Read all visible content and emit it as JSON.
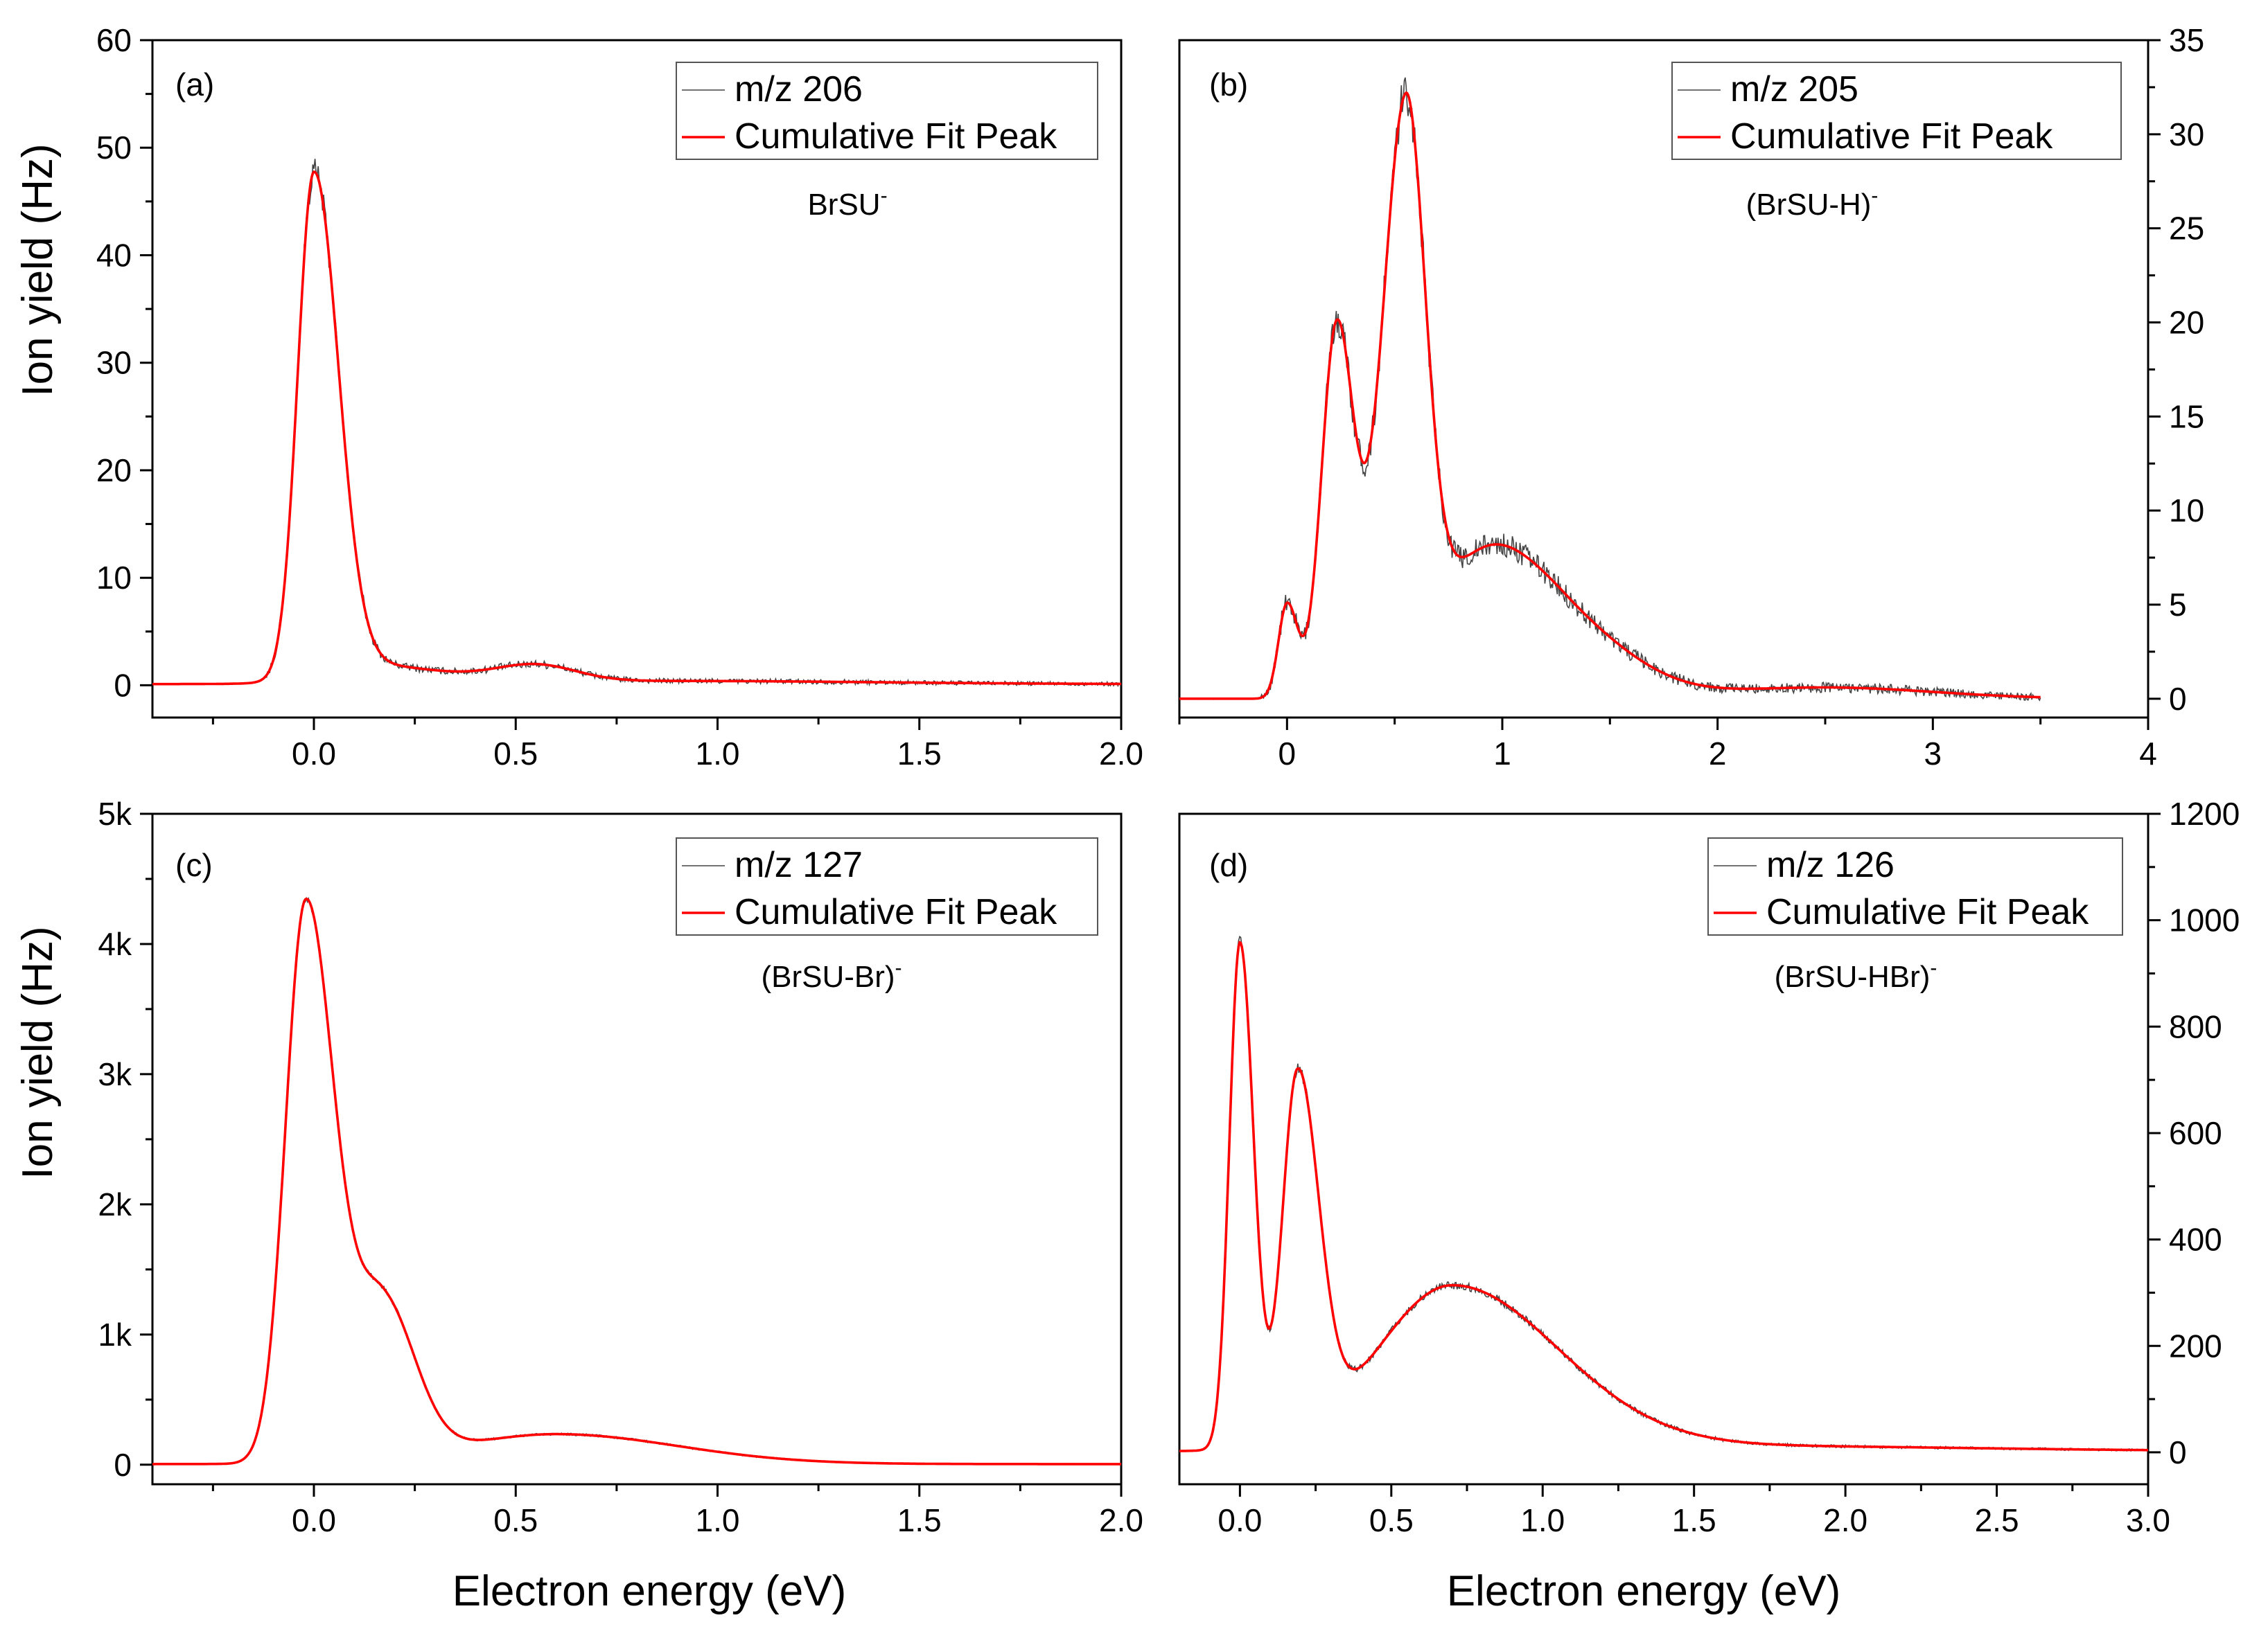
{
  "x_axis_title": "Electron energy (eV)",
  "y_axis_title": "Ion yield (Hz)",
  "chart_data": [
    {
      "id": "a",
      "type": "line",
      "panel_label": "(a)",
      "annotation": "BrSU",
      "annotation_sup": "-",
      "legend": [
        "m/z 206",
        "Cumulative Fit Peak"
      ],
      "axis_side": "left",
      "xlim": [
        -0.4,
        2.0
      ],
      "ylim": [
        -3,
        60
      ],
      "x_ticks": [
        0.0,
        0.5,
        1.0,
        1.5,
        2.0
      ],
      "x_tick_labels": [
        "0.0",
        "0.5",
        "1.0",
        "1.5",
        "2.0"
      ],
      "y_ticks": [
        0,
        10,
        20,
        30,
        40,
        50,
        60
      ],
      "y_tick_labels": [
        "0",
        "10",
        "20",
        "30",
        "40",
        "50",
        "60"
      ],
      "peaks": [
        [
          0.0,
          46.5,
          0.04,
          0.06
        ],
        [
          0.1,
          1.8,
          0.1,
          0.2
        ],
        [
          0.55,
          1.5,
          0.1,
          0.1
        ],
        [
          0.9,
          0.3,
          0.5,
          0.5
        ]
      ],
      "baseline": 0.1,
      "fit_end": 2.0,
      "raw_start": -0.4,
      "noise": 0.5,
      "series": [
        {
          "name": "m/z 206",
          "color": "#444444",
          "peak_value": 50
        },
        {
          "name": "Cumulative Fit Peak",
          "color": "#ff0000",
          "peak_value": 47.5
        }
      ]
    },
    {
      "id": "b",
      "type": "line",
      "panel_label": "(b)",
      "annotation": "(BrSU-H)",
      "annotation_sup": "-",
      "legend": [
        "m/z 205",
        "Cumulative Fit Peak"
      ],
      "axis_side": "right",
      "xlim": [
        -0.5,
        4.0
      ],
      "ylim": [
        -1,
        35
      ],
      "x_ticks": [
        0,
        1,
        2,
        3,
        4
      ],
      "x_tick_labels": [
        "0",
        "1",
        "2",
        "3",
        "4"
      ],
      "y_ticks": [
        0,
        5,
        10,
        15,
        20,
        25,
        30,
        35
      ],
      "y_tick_labels": [
        "0",
        "5",
        "10",
        "15",
        "20",
        "25",
        "30",
        "35"
      ],
      "peaks": [
        [
          0.0,
          5.0,
          0.04,
          0.05
        ],
        [
          0.23,
          19.5,
          0.07,
          0.08
        ],
        [
          0.55,
          29.5,
          0.11,
          0.09
        ],
        [
          0.9,
          7.0,
          0.25,
          0.25
        ],
        [
          1.3,
          3.5,
          0.25,
          0.3
        ],
        [
          2.5,
          0.6,
          0.5,
          0.5
        ]
      ],
      "baseline": 0.0,
      "fit_end": 3.5,
      "raw_start": -0.5,
      "noise": 0.45,
      "series": [
        {
          "name": "m/z 205",
          "color": "#444444",
          "peak_value": 32
        },
        {
          "name": "Cumulative Fit Peak",
          "color": "#ff0000",
          "peak_value": 30.5
        }
      ]
    },
    {
      "id": "c",
      "type": "line",
      "panel_label": "(c)",
      "annotation": "(BrSU-Br)",
      "annotation_sup": "-",
      "legend": [
        "m/z 127",
        "Cumulative Fit Peak"
      ],
      "axis_side": "left",
      "xlim": [
        -0.4,
        2.0
      ],
      "ylim": [
        -150,
        5000
      ],
      "x_ticks": [
        0.0,
        0.5,
        1.0,
        1.5,
        2.0
      ],
      "x_tick_labels": [
        "0.0",
        "0.5",
        "1.0",
        "1.5",
        "2.0"
      ],
      "y_ticks": [
        0,
        1000,
        2000,
        3000,
        4000,
        5000
      ],
      "y_tick_labels": [
        "0",
        "1k",
        "2k",
        "3k",
        "4k",
        "5k"
      ],
      "peaks": [
        [
          -0.02,
          4300,
          0.05,
          0.07
        ],
        [
          0.17,
          1200,
          0.07,
          0.08
        ],
        [
          0.6,
          230,
          0.25,
          0.3
        ]
      ],
      "baseline": 5,
      "fit_end": 2.0,
      "raw_start": -0.4,
      "noise": 12,
      "series": [
        {
          "name": "m/z 127",
          "color": "#444444",
          "peak_value": 4550
        },
        {
          "name": "Cumulative Fit Peak",
          "color": "#ff0000",
          "peak_value": 4500
        }
      ]
    },
    {
      "id": "d",
      "type": "line",
      "panel_label": "(d)",
      "annotation": "(BrSU-HBr)",
      "annotation_sup": "-",
      "legend": [
        "m/z 126",
        "Cumulative Fit Peak"
      ],
      "axis_side": "right",
      "xlim": [
        -0.2,
        3.0
      ],
      "ylim": [
        -60,
        1200
      ],
      "x_ticks": [
        0.0,
        0.5,
        1.0,
        1.5,
        2.0,
        2.5,
        3.0
      ],
      "x_tick_labels": [
        "0.0",
        "0.5",
        "1.0",
        "1.5",
        "2.0",
        "2.5",
        "3.0"
      ],
      "y_ticks": [
        0,
        200,
        400,
        600,
        800,
        1000,
        1200
      ],
      "y_tick_labels": [
        "0",
        "200",
        "400",
        "600",
        "800",
        "1000",
        "1200"
      ],
      "peaks": [
        [
          0.0,
          950,
          0.035,
          0.045
        ],
        [
          0.19,
          680,
          0.05,
          0.07
        ],
        [
          0.7,
          310,
          0.25,
          0.35
        ],
        [
          1.6,
          10,
          0.5,
          0.8
        ]
      ],
      "baseline": 2,
      "fit_end": 3.0,
      "raw_start": -0.2,
      "noise": 5,
      "series": [
        {
          "name": "m/z 126",
          "color": "#444444",
          "peak_value": 990
        },
        {
          "name": "Cumulative Fit Peak",
          "color": "#ff0000",
          "peak_value": 980
        }
      ]
    }
  ]
}
